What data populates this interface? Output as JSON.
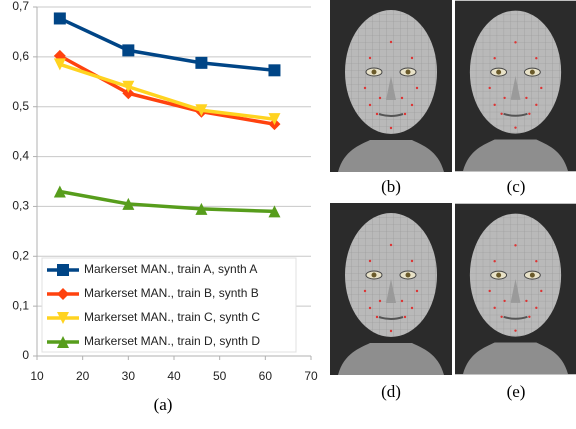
{
  "chart_data": {
    "type": "line",
    "x": [
      15,
      30,
      46,
      62
    ],
    "series": [
      {
        "name": "Markerset MAN., train A, synth A",
        "color": "#004586",
        "marker": "square",
        "values": [
          0.677,
          0.613,
          0.588,
          0.573
        ]
      },
      {
        "name": "Markerset MAN., train B, synth B",
        "color": "#ff420e",
        "marker": "diamond",
        "values": [
          0.602,
          0.527,
          0.49,
          0.465
        ]
      },
      {
        "name": "Markerset MAN., train C, synth C",
        "color": "#ffd320",
        "marker": "triangle-down",
        "values": [
          0.585,
          0.54,
          0.493,
          0.475
        ]
      },
      {
        "name": "Markerset MAN., train D, synth D",
        "color": "#579d1c",
        "marker": "triangle-up",
        "values": [
          0.33,
          0.305,
          0.295,
          0.29
        ]
      }
    ],
    "xlim": [
      10,
      70
    ],
    "xticks": [
      10,
      20,
      30,
      40,
      50,
      60,
      70
    ],
    "ylim": [
      0,
      0.7
    ],
    "yticks": [
      0,
      {
        "value": 0.1,
        "label": "0,1"
      },
      {
        "value": 0.2,
        "label": "0,2"
      },
      {
        "value": 0.3,
        "label": "0,3"
      },
      {
        "value": 0.4,
        "label": "0,4"
      },
      {
        "value": 0.5,
        "label": "0,5"
      },
      {
        "value": 0.6,
        "label": "0,6"
      },
      {
        "value": 0.7,
        "label": "0,7"
      }
    ],
    "grid": true,
    "legend": "lower left"
  },
  "figure": {
    "caption": "(a)",
    "panels": [
      "(b)",
      "(c)",
      "(d)",
      "(e)"
    ]
  }
}
